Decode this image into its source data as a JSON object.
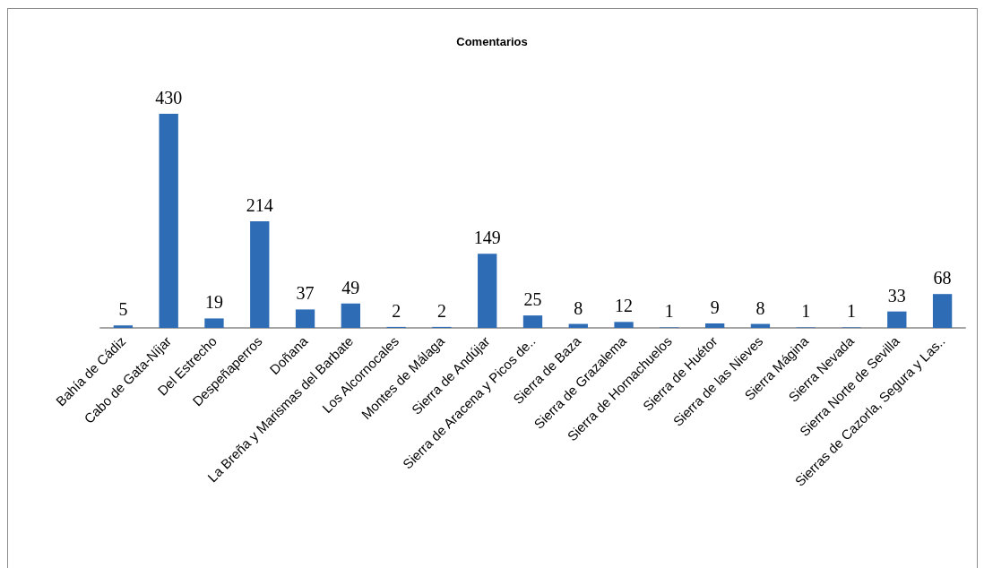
{
  "chart_data": {
    "type": "bar",
    "title": "Comentarios",
    "categories": [
      "Bahía de Cádiz",
      "Cabo de Gata-Níjar",
      "Del Estrecho",
      "Despeñaperros",
      "Doñana",
      "La Breña y Marismas del Barbate",
      "Los Alcornocales",
      "Montes de Málaga",
      "Sierra de Andújar",
      "Sierra de Aracena y Picos de..",
      "Sierra de Baza",
      "Sierra de Grazalema",
      "Sierra de Hornachuelos",
      "Sierra de Huétor",
      "Sierra de las Nieves",
      "Sierra Mágina",
      "Sierra Nevada",
      "Sierra Norte de Sevilla",
      "Sierras de Cazorla, Segura y Las.."
    ],
    "values": [
      5,
      430,
      19,
      214,
      37,
      49,
      2,
      2,
      149,
      25,
      8,
      12,
      1,
      9,
      8,
      1,
      1,
      33,
      68
    ],
    "color": "#2e6cb5",
    "data_labels": true
  }
}
